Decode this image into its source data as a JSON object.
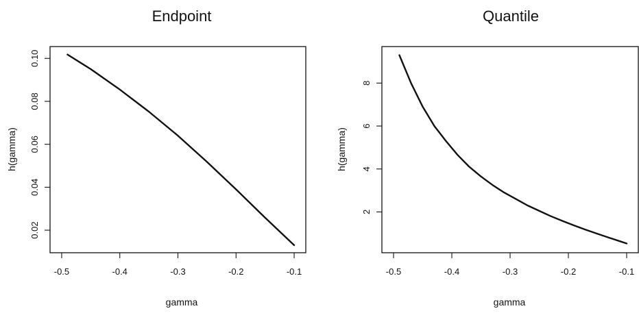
{
  "chart_data": [
    {
      "type": "line",
      "title": "Endpoint",
      "xlabel": "gamma",
      "ylabel": "h(gamma)",
      "xlim": [
        -0.52,
        -0.08
      ],
      "ylim": [
        0.0095,
        0.1055
      ],
      "x_ticks": [
        -0.5,
        -0.4,
        -0.3,
        -0.2,
        -0.1
      ],
      "x_tick_labels": [
        "-0.5",
        "-0.4",
        "-0.3",
        "-0.2",
        "-0.1"
      ],
      "y_ticks": [
        0.02,
        0.04,
        0.06,
        0.08,
        0.1
      ],
      "y_tick_labels": [
        "0.02",
        "0.04",
        "0.06",
        "0.08",
        "0.10"
      ],
      "grid": false,
      "series": [
        {
          "x": [
            -0.49,
            -0.45,
            -0.4,
            -0.35,
            -0.3,
            -0.25,
            -0.2,
            -0.15,
            -0.1
          ],
          "y": [
            0.1018,
            0.095,
            0.0855,
            0.0752,
            0.064,
            0.0518,
            0.039,
            0.0258,
            0.013
          ]
        }
      ]
    },
    {
      "type": "line",
      "title": "Quantile",
      "xlabel": "gamma",
      "ylabel": "h(gamma)",
      "xlim": [
        -0.52,
        -0.08
      ],
      "ylim": [
        0.1,
        9.7
      ],
      "x_ticks": [
        -0.5,
        -0.4,
        -0.3,
        -0.2,
        -0.1
      ],
      "x_tick_labels": [
        "-0.5",
        "-0.4",
        "-0.3",
        "-0.2",
        "-0.1"
      ],
      "y_ticks": [
        2,
        4,
        6,
        8
      ],
      "y_tick_labels": [
        "2",
        "4",
        "6",
        "8"
      ],
      "grid": false,
      "series": [
        {
          "x": [
            -0.49,
            -0.47,
            -0.45,
            -0.43,
            -0.41,
            -0.39,
            -0.37,
            -0.35,
            -0.33,
            -0.31,
            -0.29,
            -0.27,
            -0.25,
            -0.23,
            -0.21,
            -0.19,
            -0.17,
            -0.15,
            -0.13,
            -0.11,
            -0.1
          ],
          "y": [
            9.3,
            8.0,
            6.9,
            6.0,
            5.3,
            4.65,
            4.1,
            3.65,
            3.25,
            2.9,
            2.6,
            2.3,
            2.05,
            1.8,
            1.58,
            1.37,
            1.17,
            0.98,
            0.8,
            0.62,
            0.53
          ]
        }
      ]
    }
  ]
}
